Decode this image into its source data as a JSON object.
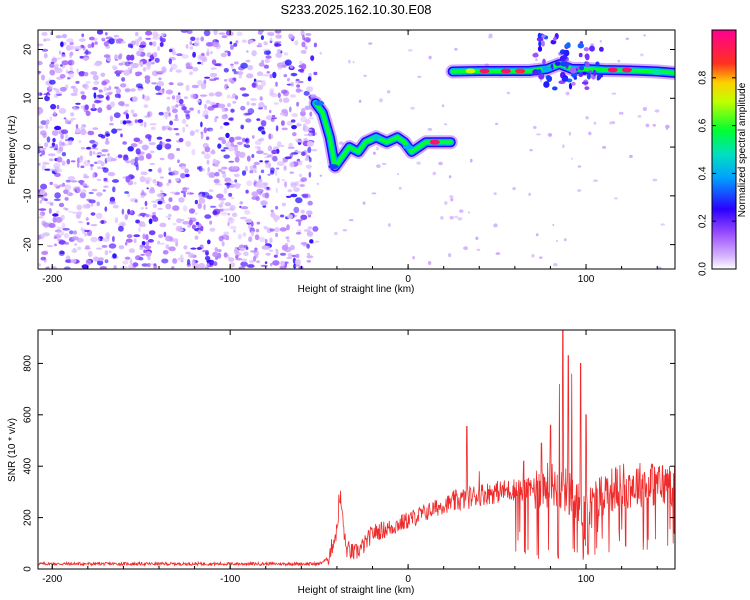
{
  "title": "S233.2025.162.10.30.E08",
  "chart_data": [
    {
      "type": "heatmap",
      "title": "S233.2025.162.10.30.E08",
      "xlabel": "Height of straight line (km)",
      "ylabel": "Frequency (Hz)",
      "xlim": [
        -208,
        150
      ],
      "ylim": [
        -25,
        24
      ],
      "xticks": [
        "-200",
        "-100",
        "0",
        "100"
      ],
      "yticks": [
        "-20",
        "-10",
        "0",
        "10",
        "20"
      ],
      "colorbar": {
        "label": "Normalized spectral amplitude",
        "range": [
          0,
          1
        ],
        "ticks": [
          "0.0",
          "0.2",
          "0.4",
          "0.6",
          "0.8"
        ],
        "colors": [
          "#ffffff",
          "#9a4dff",
          "#2a00ff",
          "#00c8ff",
          "#00ff30",
          "#f0ff00",
          "#ff2020",
          "#ff0090"
        ]
      },
      "noise_region_x": [
        -208,
        -52
      ],
      "signal_track": [
        {
          "x": -52,
          "y": 9
        },
        {
          "x": -48,
          "y": 7
        },
        {
          "x": -44,
          "y": 2
        },
        {
          "x": -41,
          "y": -4
        },
        {
          "x": -37,
          "y": -2
        },
        {
          "x": -33,
          "y": 0
        },
        {
          "x": -28,
          "y": -1
        },
        {
          "x": -24,
          "y": 1
        },
        {
          "x": -18,
          "y": 2
        },
        {
          "x": -12,
          "y": 1
        },
        {
          "x": -6,
          "y": 2
        },
        {
          "x": -2,
          "y": 1
        },
        {
          "x": 2,
          "y": -1
        },
        {
          "x": 6,
          "y": 0
        },
        {
          "x": 10,
          "y": 1
        },
        {
          "x": 15,
          "y": 1
        },
        {
          "x": 20,
          "y": 1
        },
        {
          "x": 24,
          "y": 1
        },
        {
          "x": 25,
          "y": 15.5
        },
        {
          "x": 40,
          "y": 15.6
        },
        {
          "x": 55,
          "y": 15.6
        },
        {
          "x": 68,
          "y": 15.6
        },
        {
          "x": 78,
          "y": 16
        },
        {
          "x": 85,
          "y": 17
        },
        {
          "x": 92,
          "y": 16
        },
        {
          "x": 100,
          "y": 16
        },
        {
          "x": 110,
          "y": 15.8
        },
        {
          "x": 125,
          "y": 15.7
        },
        {
          "x": 140,
          "y": 15.5
        },
        {
          "x": 150,
          "y": 15.2
        }
      ],
      "signal_peaks": [
        {
          "x": -50,
          "y": 9,
          "amplitude": 0.35
        },
        {
          "x": -42,
          "y": -4,
          "amplitude": 0.3
        },
        {
          "x": -18,
          "y": 2,
          "amplitude": 0.45
        },
        {
          "x": 0,
          "y": 0,
          "amplitude": 0.4
        },
        {
          "x": 15,
          "y": 1,
          "amplitude": 0.95
        },
        {
          "x": 35,
          "y": 15.6,
          "amplitude": 0.7
        },
        {
          "x": 43,
          "y": 15.6,
          "amplitude": 0.95
        },
        {
          "x": 55,
          "y": 15.6,
          "amplitude": 0.95
        },
        {
          "x": 63,
          "y": 15.6,
          "amplitude": 0.9
        },
        {
          "x": 78,
          "y": 16,
          "amplitude": 0.4
        },
        {
          "x": 88,
          "y": 17,
          "amplitude": 0.3
        },
        {
          "x": 115,
          "y": 15.8,
          "amplitude": 0.95
        },
        {
          "x": 123,
          "y": 15.8,
          "amplitude": 0.95
        },
        {
          "x": 140,
          "y": 15.3,
          "amplitude": 0.5
        }
      ]
    },
    {
      "type": "line",
      "xlabel": "Height of straight line (km)",
      "ylabel": "SNR (10 * v/v)",
      "xlim": [
        -208,
        150
      ],
      "ylim": [
        0,
        930
      ],
      "xticks": [
        "-200",
        "-100",
        "0",
        "100"
      ],
      "yticks": [
        "0",
        "200",
        "400",
        "600",
        "800"
      ],
      "line_color": "#ee2a2a",
      "series": [
        {
          "x": [
            -208,
            -180,
            -150,
            -120,
            -90,
            -60,
            -50,
            -45,
            -40,
            -38,
            -35,
            -30,
            -25,
            -20,
            -10,
            0,
            10,
            20,
            30,
            40,
            50,
            60,
            70,
            80,
            85,
            90,
            95,
            100,
            110,
            120,
            130,
            140,
            150
          ],
          "values": [
            20,
            20,
            20,
            20,
            20,
            20,
            20,
            40,
            150,
            280,
            80,
            60,
            90,
            140,
            160,
            190,
            220,
            250,
            270,
            290,
            300,
            310,
            310,
            330,
            320,
            300,
            250,
            220,
            300,
            320,
            330,
            330,
            330
          ]
        }
      ],
      "spikes": [
        {
          "x": -39,
          "y": 290
        },
        {
          "x": 33,
          "y": 555
        },
        {
          "x": 40,
          "y": 380
        },
        {
          "x": 65,
          "y": 420
        },
        {
          "x": 75,
          "y": 490
        },
        {
          "x": 80,
          "y": 560
        },
        {
          "x": 85,
          "y": 720
        },
        {
          "x": 87,
          "y": 930
        },
        {
          "x": 90,
          "y": 830
        },
        {
          "x": 92,
          "y": 760
        },
        {
          "x": 97,
          "y": 800
        },
        {
          "x": 100,
          "y": 600
        }
      ]
    }
  ]
}
